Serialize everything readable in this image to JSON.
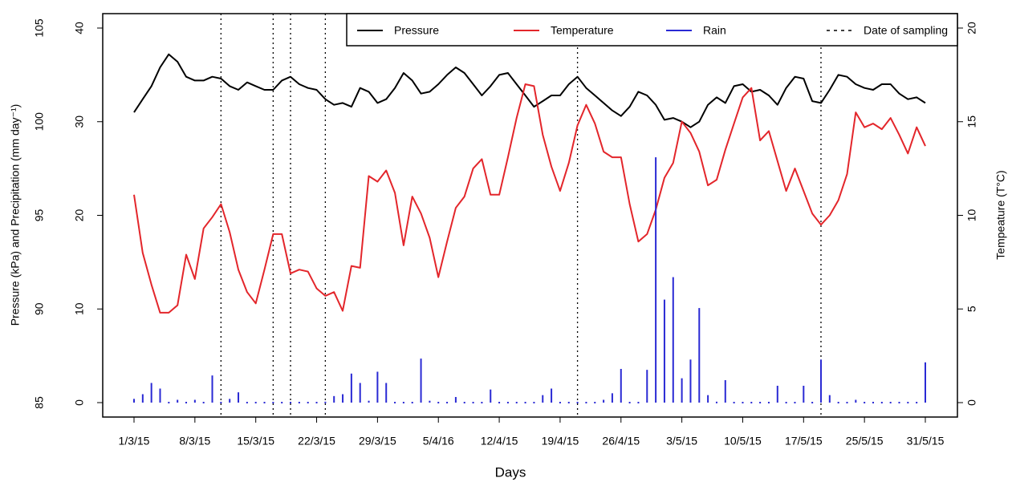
{
  "chart_data": {
    "type": "line",
    "xlabel": "Days",
    "ylabel": "Pressure (kPa) and Precipitation (mm day⁻¹)",
    "y2label": "Tempeature (T°C)",
    "categories": [
      "1/3/15",
      null,
      null,
      null,
      null,
      null,
      null,
      "8/3/15",
      null,
      null,
      null,
      null,
      null,
      null,
      "15/3/15",
      null,
      null,
      null,
      null,
      null,
      null,
      "22/3/15",
      null,
      null,
      null,
      null,
      null,
      null,
      "29/3/15",
      null,
      null,
      null,
      null,
      null,
      null,
      "5/4/16",
      null,
      null,
      null,
      null,
      null,
      null,
      "12/4/15",
      null,
      null,
      null,
      null,
      null,
      null,
      "19/4/15",
      null,
      null,
      null,
      null,
      null,
      null,
      "26/4/15",
      null,
      null,
      null,
      null,
      null,
      null,
      "3/5/15",
      null,
      null,
      null,
      null,
      null,
      null,
      "10/5/15",
      null,
      null,
      null,
      null,
      null,
      null,
      "17/5/15",
      null,
      null,
      null,
      null,
      null,
      null,
      "25/5/15",
      null,
      null,
      null,
      null,
      null,
      null,
      "31/5/15"
    ],
    "ylim": [
      84.23,
      105.77
    ],
    "yticks": [
      85,
      90,
      95,
      100,
      105
    ],
    "rain_lim": [
      -1.54,
      41.54
    ],
    "rain_ticks": [
      0,
      10,
      20,
      30,
      40
    ],
    "y2lim": [
      -0.77,
      20.77
    ],
    "y2ticks": [
      0,
      5,
      10,
      15,
      20
    ],
    "sampling_label": "Date of sampling",
    "sampling_days": [
      10,
      16,
      18,
      22,
      51,
      79
    ],
    "legend": "top-right",
    "series": [
      {
        "name": "Pressure",
        "color": "#000000",
        "axis": "y",
        "values": [
          100.5,
          101.2,
          101.9,
          102.9,
          103.6,
          103.2,
          102.4,
          102.2,
          102.2,
          102.4,
          102.3,
          101.9,
          101.7,
          102.1,
          101.9,
          101.7,
          101.7,
          102.2,
          102.4,
          102.0,
          101.8,
          101.7,
          101.2,
          100.9,
          101.0,
          100.8,
          101.8,
          101.6,
          101.0,
          101.2,
          101.8,
          102.6,
          102.2,
          101.5,
          101.6,
          102.0,
          102.5,
          102.9,
          102.6,
          102.0,
          101.4,
          101.9,
          102.5,
          102.6,
          102.0,
          101.4,
          100.8,
          101.1,
          101.4,
          101.4,
          102.0,
          102.4,
          101.8,
          101.4,
          101.0,
          100.6,
          100.3,
          100.8,
          101.6,
          101.4,
          100.9,
          100.1,
          100.2,
          100.0,
          99.7,
          100.0,
          100.9,
          101.3,
          101.0,
          101.9,
          102.0,
          101.6,
          101.7,
          101.4,
          100.9,
          101.8,
          102.4,
          102.3,
          101.1,
          101.0,
          101.7,
          102.5,
          102.4,
          102.0,
          101.8,
          101.7,
          102.0,
          102.0,
          101.5,
          101.2,
          101.3,
          101.0
        ]
      },
      {
        "name": "Temperature",
        "color": "#e3262b",
        "axis": "y2",
        "values": [
          11.1,
          8.0,
          6.3,
          4.8,
          4.8,
          5.2,
          7.9,
          6.6,
          9.3,
          9.9,
          10.6,
          9.1,
          7.1,
          5.9,
          5.3,
          7.1,
          9.0,
          9.0,
          6.9,
          7.1,
          7.0,
          6.1,
          5.7,
          5.9,
          4.9,
          7.3,
          7.2,
          12.1,
          11.8,
          12.4,
          11.2,
          8.4,
          11.0,
          10.1,
          8.8,
          6.7,
          8.6,
          10.4,
          11.0,
          12.5,
          13.0,
          11.1,
          11.1,
          13.1,
          15.2,
          17.0,
          16.9,
          14.3,
          12.6,
          11.3,
          12.8,
          14.8,
          15.9,
          14.9,
          13.4,
          13.1,
          13.1,
          10.6,
          8.6,
          9.0,
          10.3,
          12.0,
          12.8,
          15.0,
          14.4,
          13.4,
          11.6,
          11.9,
          13.5,
          14.9,
          16.3,
          16.8,
          14.0,
          14.5,
          12.9,
          11.3,
          12.5,
          11.3,
          10.1,
          9.5,
          10.0,
          10.8,
          12.2,
          15.5,
          14.7,
          14.9,
          14.6,
          15.2,
          14.3,
          13.3,
          14.7,
          13.7
        ]
      },
      {
        "name": "Rain",
        "color": "#2a2ad4",
        "axis": "rain",
        "style": "bars",
        "values": [
          0.4,
          0.9,
          2.1,
          1.5,
          0,
          0.3,
          0,
          0.3,
          0,
          2.9,
          0,
          0.4,
          1.1,
          0,
          0,
          0,
          0,
          0,
          0,
          0,
          0,
          0,
          0.1,
          0.7,
          0.9,
          3.1,
          2.1,
          0.2,
          3.3,
          2.1,
          0,
          0,
          0,
          4.7,
          0.2,
          0,
          0,
          0.6,
          0,
          0,
          0,
          1.4,
          0,
          0,
          0,
          0,
          0,
          0.8,
          1.5,
          0,
          0,
          0,
          0,
          0,
          0.3,
          1.0,
          3.6,
          0,
          0,
          3.5,
          26.2,
          11.0,
          13.4,
          2.6,
          4.6,
          10.1,
          0.8,
          0.1,
          2.4,
          0,
          0,
          0,
          0,
          0,
          1.8,
          0,
          0,
          1.8,
          0,
          4.6,
          0.8,
          0,
          0,
          0.3,
          0,
          0,
          0,
          0,
          0,
          0,
          0,
          4.3
        ]
      }
    ]
  }
}
